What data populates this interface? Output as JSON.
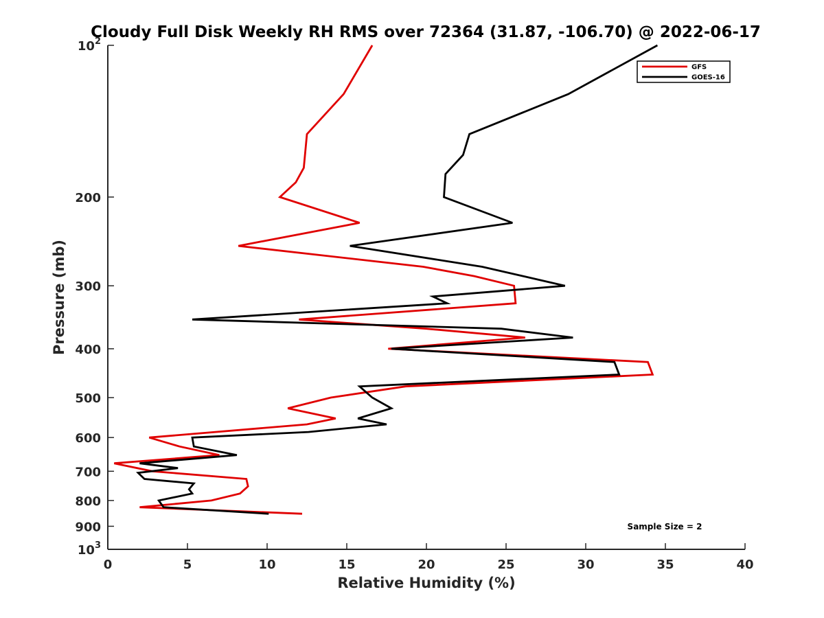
{
  "chart_data": {
    "type": "line",
    "title": "Cloudy Full Disk Weekly RH RMS over 72364 (31.87, -106.70) @ 2022-06-17",
    "xlabel": "Relative Humidity (%)",
    "ylabel": "Pressure (mb)",
    "xlim": [
      0,
      40
    ],
    "ylim": [
      100,
      1000
    ],
    "y_scale": "log",
    "y_reversed": true,
    "grid": false,
    "x_ticks": [
      0,
      5,
      10,
      15,
      20,
      25,
      30,
      35,
      40
    ],
    "y_ticks": [
      {
        "value": 100,
        "label": "10",
        "sup": "2"
      },
      {
        "value": 200,
        "label": "200",
        "sup": ""
      },
      {
        "value": 300,
        "label": "300",
        "sup": ""
      },
      {
        "value": 400,
        "label": "400",
        "sup": ""
      },
      {
        "value": 500,
        "label": "500",
        "sup": ""
      },
      {
        "value": 600,
        "label": "600",
        "sup": ""
      },
      {
        "value": 700,
        "label": "700",
        "sup": ""
      },
      {
        "value": 800,
        "label": "800",
        "sup": ""
      },
      {
        "value": 900,
        "label": "900",
        "sup": ""
      },
      {
        "value": 1000,
        "label": "10",
        "sup": "3"
      }
    ],
    "legend_position": "top-right",
    "annotation": "Sample Size = 2",
    "series": [
      {
        "name": "GFS",
        "color": "#e00000",
        "points": [
          [
            16.6,
            100
          ],
          [
            14.8,
            125
          ],
          [
            12.5,
            150
          ],
          [
            12.3,
            175
          ],
          [
            11.8,
            187
          ],
          [
            10.8,
            200
          ],
          [
            15.8,
            225
          ],
          [
            8.2,
            250
          ],
          [
            19.8,
            275
          ],
          [
            23.0,
            287
          ],
          [
            25.5,
            300
          ],
          [
            25.6,
            325
          ],
          [
            12.0,
            350
          ],
          [
            20.0,
            365
          ],
          [
            26.2,
            380
          ],
          [
            17.6,
            400
          ],
          [
            33.9,
            425
          ],
          [
            34.2,
            450
          ],
          [
            18.7,
            475
          ],
          [
            14.0,
            500
          ],
          [
            11.3,
            525
          ],
          [
            14.3,
            550
          ],
          [
            12.5,
            565
          ],
          [
            2.6,
            600
          ],
          [
            4.5,
            625
          ],
          [
            7.0,
            650
          ],
          [
            0.4,
            675
          ],
          [
            2.8,
            700
          ],
          [
            8.7,
            725
          ],
          [
            8.8,
            750
          ],
          [
            8.3,
            775
          ],
          [
            6.5,
            800
          ],
          [
            2.0,
            825
          ],
          [
            12.2,
            850
          ]
        ]
      },
      {
        "name": "GOES-16",
        "color": "#000000",
        "points": [
          [
            34.5,
            100
          ],
          [
            28.9,
            125
          ],
          [
            22.7,
            150
          ],
          [
            22.3,
            165
          ],
          [
            21.2,
            180
          ],
          [
            21.1,
            200
          ],
          [
            25.4,
            225
          ],
          [
            15.2,
            250
          ],
          [
            23.5,
            275
          ],
          [
            28.7,
            300
          ],
          [
            20.4,
            315
          ],
          [
            21.3,
            325
          ],
          [
            5.3,
            350
          ],
          [
            24.7,
            365
          ],
          [
            29.2,
            380
          ],
          [
            17.8,
            400
          ],
          [
            31.8,
            425
          ],
          [
            32.1,
            450
          ],
          [
            15.8,
            475
          ],
          [
            16.6,
            500
          ],
          [
            17.8,
            525
          ],
          [
            15.7,
            550
          ],
          [
            17.5,
            565
          ],
          [
            12.6,
            585
          ],
          [
            5.3,
            600
          ],
          [
            5.4,
            625
          ],
          [
            8.1,
            650
          ],
          [
            2.0,
            675
          ],
          [
            4.4,
            690
          ],
          [
            1.9,
            705
          ],
          [
            2.3,
            725
          ],
          [
            5.4,
            740
          ],
          [
            5.1,
            760
          ],
          [
            5.3,
            775
          ],
          [
            3.2,
            800
          ],
          [
            3.5,
            825
          ],
          [
            10.1,
            850
          ]
        ]
      }
    ]
  }
}
